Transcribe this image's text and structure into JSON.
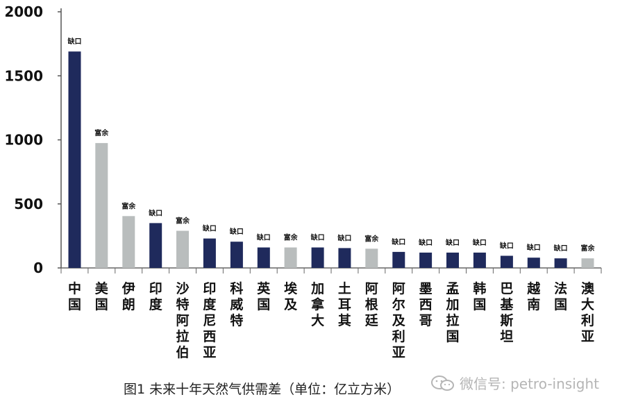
{
  "chart_data": {
    "type": "bar",
    "title": "图1  未来十年天然气供需差（单位：亿立方米）",
    "xlabel": "",
    "ylabel": "",
    "ylim": [
      0,
      2000
    ],
    "yticks": [
      "2000",
      "1500",
      "1000",
      "500",
      "0"
    ],
    "ytick_values": [
      2000,
      1500,
      1000,
      500,
      0
    ],
    "categories": [
      "中国",
      "美国",
      "伊朗",
      "印度",
      "沙特阿拉伯",
      "印度尼西亚",
      "科威特",
      "英国",
      "埃及",
      "加拿大",
      "土耳其",
      "阿根廷",
      "阿尔及利亚",
      "墨西哥",
      "孟加拉国",
      "韩国",
      "巴基斯坦",
      "越南",
      "法国",
      "澳大利亚"
    ],
    "values": [
      1690,
      975,
      405,
      350,
      290,
      230,
      205,
      160,
      160,
      160,
      155,
      150,
      125,
      120,
      120,
      120,
      95,
      80,
      75,
      75
    ],
    "labels": [
      "缺口",
      "富余",
      "富余",
      "缺口",
      "富余",
      "缺口",
      "缺口",
      "缺口",
      "富余",
      "缺口",
      "缺口",
      "富余",
      "缺口",
      "缺口",
      "缺口",
      "缺口",
      "缺口",
      "缺口",
      "缺口",
      "富余"
    ],
    "series_colors": {
      "缺口": "#1f2a5c",
      "富余": "#b9bdbd"
    }
  },
  "watermark": {
    "text": "微信号: petro-insight",
    "icon": "wechat-icon"
  }
}
